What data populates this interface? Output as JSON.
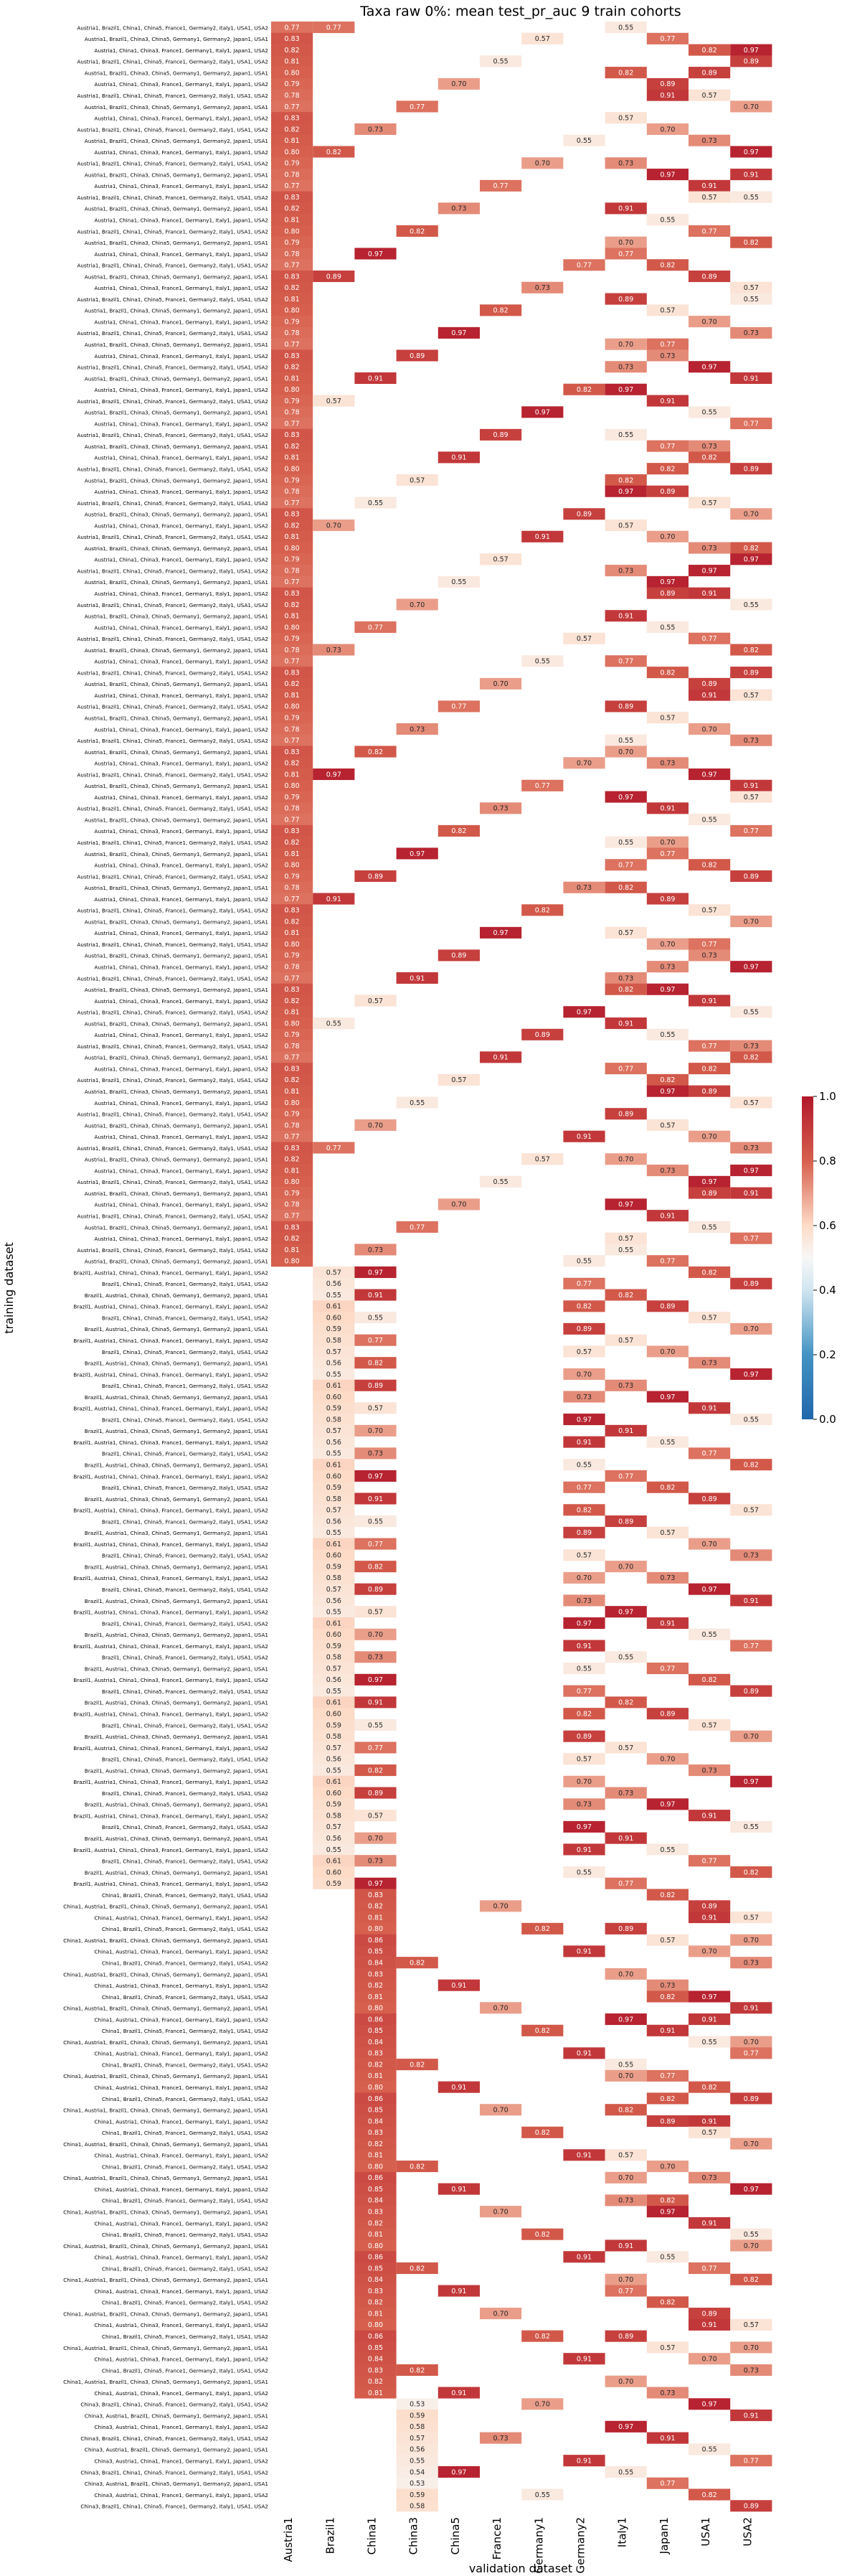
{
  "chart_data": {
    "type": "heatmap",
    "title": "Taxa raw 0%: mean test_pr_auc 9 train cohorts",
    "xlabel": "validation dataset",
    "ylabel": "training dataset",
    "columns": [
      "Austria1",
      "Brazil1",
      "China1",
      "China3",
      "China5",
      "France1",
      "Germany1",
      "Germany2",
      "Italy1",
      "Japan1",
      "USA1",
      "USA2"
    ],
    "colorbar": {
      "min": 0.0,
      "max": 1.0,
      "ticks": [
        "0.0",
        "0.2",
        "0.4",
        "0.6",
        "0.8",
        "1.0"
      ],
      "colormap": "RdBu_r"
    },
    "groups": [
      {
        "first": "Austria1",
        "length": 110,
        "base": 0.8
      },
      {
        "first": "Brazil1",
        "length": 55,
        "base": 0.58
      },
      {
        "first": "China1",
        "length": 45,
        "base": 0.83
      },
      {
        "first": "China3",
        "length": 10,
        "base": 0.56
      }
    ],
    "sample_values": [
      0.7,
      0.77,
      0.73,
      0.82,
      0.97,
      0.89,
      0.91,
      0.57,
      0.55
    ]
  }
}
